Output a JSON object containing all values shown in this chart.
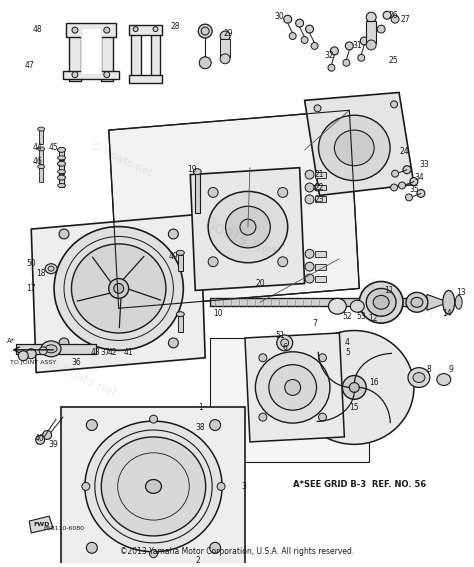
{
  "bg_color": "#ffffff",
  "line_color": "#1a1a1a",
  "text_color": "#1a1a1a",
  "watermark_color": "#888888",
  "bottom_text1": "658110-6080",
  "bottom_text2": "©2013 Yamaha Motor Corporation, U.S.A. All rights reserved.",
  "ref_text": "A*SEE GRID B-3  REF. NO. 56",
  "arrow_label": "TO JOINT ASSY",
  "fwd_label": "FWD"
}
